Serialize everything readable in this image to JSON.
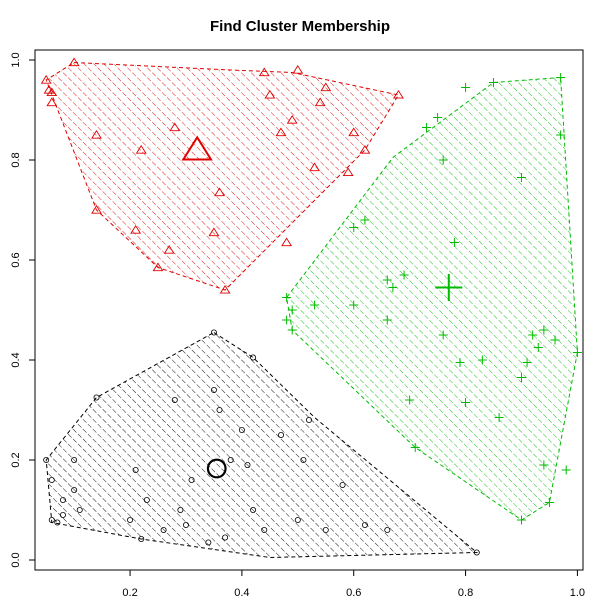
{
  "chart_data": {
    "type": "scatter",
    "title": "Find Cluster Membership",
    "xlabel": "",
    "ylabel": "",
    "xlim": [
      0.03,
      1.01
    ],
    "ylim": [
      -0.02,
      1.02
    ],
    "x_ticks": [
      0.2,
      0.4,
      0.6,
      0.8,
      1.0
    ],
    "x_tick_labels": [
      "0.2",
      "0.4",
      "0.6",
      "0.8",
      "1.0"
    ],
    "y_ticks": [
      0.0,
      0.2,
      0.4,
      0.6,
      0.8,
      1.0
    ],
    "y_tick_labels": [
      "0.0",
      "0.2",
      "0.4",
      "0.6",
      "0.8",
      "1.0"
    ],
    "grid": false,
    "clusters": [
      {
        "color": "#000000",
        "marker": "circle",
        "centroid": [
          0.355,
          0.183
        ],
        "hull": [
          [
            0.35,
            0.455
          ],
          [
            0.42,
            0.405
          ],
          [
            0.53,
            0.285
          ],
          [
            0.82,
            0.015
          ],
          [
            0.45,
            0.005
          ],
          [
            0.22,
            0.042
          ],
          [
            0.06,
            0.075
          ],
          [
            0.05,
            0.2
          ],
          [
            0.14,
            0.325
          ]
        ],
        "points": [
          [
            0.05,
            0.2
          ],
          [
            0.06,
            0.16
          ],
          [
            0.06,
            0.08
          ],
          [
            0.07,
            0.075
          ],
          [
            0.08,
            0.09
          ],
          [
            0.08,
            0.12
          ],
          [
            0.1,
            0.14
          ],
          [
            0.1,
            0.2
          ],
          [
            0.11,
            0.1
          ],
          [
            0.14,
            0.325
          ],
          [
            0.2,
            0.08
          ],
          [
            0.21,
            0.18
          ],
          [
            0.22,
            0.042
          ],
          [
            0.23,
            0.12
          ],
          [
            0.26,
            0.06
          ],
          [
            0.28,
            0.32
          ],
          [
            0.29,
            0.1
          ],
          [
            0.3,
            0.07
          ],
          [
            0.31,
            0.16
          ],
          [
            0.34,
            0.035
          ],
          [
            0.35,
            0.34
          ],
          [
            0.35,
            0.455
          ],
          [
            0.36,
            0.3
          ],
          [
            0.37,
            0.045
          ],
          [
            0.38,
            0.2
          ],
          [
            0.4,
            0.26
          ],
          [
            0.41,
            0.19
          ],
          [
            0.42,
            0.1
          ],
          [
            0.42,
            0.405
          ],
          [
            0.44,
            0.06
          ],
          [
            0.47,
            0.25
          ],
          [
            0.5,
            0.08
          ],
          [
            0.51,
            0.2
          ],
          [
            0.52,
            0.28
          ],
          [
            0.55,
            0.06
          ],
          [
            0.58,
            0.15
          ],
          [
            0.62,
            0.07
          ],
          [
            0.66,
            0.06
          ],
          [
            0.82,
            0.015
          ]
        ]
      },
      {
        "color": "#DF0000",
        "marker": "triangle",
        "centroid": [
          0.32,
          0.82
        ],
        "hull": [
          [
            0.1,
            0.995
          ],
          [
            0.38,
            0.98
          ],
          [
            0.49,
            0.975
          ],
          [
            0.68,
            0.93
          ],
          [
            0.62,
            0.82
          ],
          [
            0.37,
            0.54
          ],
          [
            0.25,
            0.585
          ],
          [
            0.14,
            0.7
          ],
          [
            0.05,
            0.96
          ]
        ],
        "points": [
          [
            0.05,
            0.96
          ],
          [
            0.055,
            0.94
          ],
          [
            0.06,
            0.935
          ],
          [
            0.06,
            0.915
          ],
          [
            0.1,
            0.995
          ],
          [
            0.14,
            0.85
          ],
          [
            0.14,
            0.7
          ],
          [
            0.21,
            0.66
          ],
          [
            0.22,
            0.82
          ],
          [
            0.25,
            0.585
          ],
          [
            0.27,
            0.62
          ],
          [
            0.28,
            0.865
          ],
          [
            0.35,
            0.655
          ],
          [
            0.36,
            0.735
          ],
          [
            0.37,
            0.54
          ],
          [
            0.44,
            0.975
          ],
          [
            0.45,
            0.93
          ],
          [
            0.47,
            0.855
          ],
          [
            0.48,
            0.635
          ],
          [
            0.49,
            0.88
          ],
          [
            0.5,
            0.98
          ],
          [
            0.53,
            0.785
          ],
          [
            0.54,
            0.915
          ],
          [
            0.55,
            0.945
          ],
          [
            0.59,
            0.775
          ],
          [
            0.6,
            0.855
          ],
          [
            0.62,
            0.82
          ],
          [
            0.68,
            0.93
          ]
        ]
      },
      {
        "color": "#00BB00",
        "marker": "plus",
        "centroid": [
          0.77,
          0.545
        ],
        "hull": [
          [
            0.97,
            0.965
          ],
          [
            0.85,
            0.955
          ],
          [
            0.67,
            0.805
          ],
          [
            0.48,
            0.525
          ],
          [
            0.49,
            0.46
          ],
          [
            0.71,
            0.225
          ],
          [
            0.9,
            0.08
          ],
          [
            0.95,
            0.115
          ],
          [
            1.0,
            0.415
          ]
        ],
        "points": [
          [
            0.48,
            0.525
          ],
          [
            0.48,
            0.48
          ],
          [
            0.49,
            0.46
          ],
          [
            0.49,
            0.5
          ],
          [
            0.53,
            0.51
          ],
          [
            0.6,
            0.51
          ],
          [
            0.6,
            0.665
          ],
          [
            0.62,
            0.68
          ],
          [
            0.66,
            0.56
          ],
          [
            0.66,
            0.48
          ],
          [
            0.67,
            0.545
          ],
          [
            0.69,
            0.57
          ],
          [
            0.7,
            0.32
          ],
          [
            0.71,
            0.225
          ],
          [
            0.73,
            0.865
          ],
          [
            0.75,
            0.885
          ],
          [
            0.76,
            0.8
          ],
          [
            0.76,
            0.45
          ],
          [
            0.78,
            0.635
          ],
          [
            0.79,
            0.395
          ],
          [
            0.8,
            0.315
          ],
          [
            0.8,
            0.945
          ],
          [
            0.83,
            0.4
          ],
          [
            0.85,
            0.955
          ],
          [
            0.86,
            0.285
          ],
          [
            0.9,
            0.765
          ],
          [
            0.9,
            0.08
          ],
          [
            0.9,
            0.365
          ],
          [
            0.91,
            0.395
          ],
          [
            0.92,
            0.45
          ],
          [
            0.93,
            0.425
          ],
          [
            0.94,
            0.46
          ],
          [
            0.94,
            0.19
          ],
          [
            0.95,
            0.115
          ],
          [
            0.96,
            0.44
          ],
          [
            0.97,
            0.965
          ],
          [
            0.97,
            0.85
          ],
          [
            0.98,
            0.18
          ],
          [
            1.0,
            0.415
          ]
        ]
      }
    ]
  }
}
